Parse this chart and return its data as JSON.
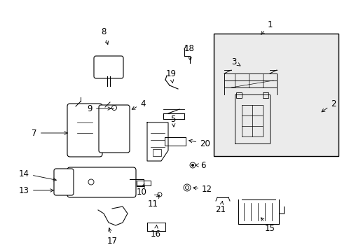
{
  "bg_color": "#ffffff",
  "line_color": "#000000",
  "box_fill": "#ebebeb",
  "label_fontsize": 8.5,
  "label_specs": [
    [
      "8",
      148,
      52,
      155,
      67,
      "center",
      "bottom"
    ],
    [
      "4",
      200,
      148,
      185,
      158,
      "left",
      "center"
    ],
    [
      "9",
      132,
      155,
      162,
      155,
      "right",
      "center"
    ],
    [
      "7",
      53,
      190,
      100,
      190,
      "right",
      "center"
    ],
    [
      "1",
      385,
      42,
      370,
      52,
      "center",
      "bottom"
    ],
    [
      "2",
      472,
      148,
      456,
      162,
      "left",
      "center"
    ],
    [
      "3",
      330,
      88,
      346,
      96,
      "left",
      "center"
    ],
    [
      "18",
      270,
      76,
      272,
      90,
      "center",
      "bottom"
    ],
    [
      "19",
      244,
      112,
      247,
      122,
      "center",
      "bottom"
    ],
    [
      "5",
      251,
      170,
      248,
      182,
      "right",
      "center"
    ],
    [
      "20",
      285,
      205,
      266,
      200,
      "left",
      "center"
    ],
    [
      "6",
      286,
      236,
      278,
      236,
      "left",
      "center"
    ],
    [
      "14",
      42,
      248,
      84,
      258,
      "right",
      "center"
    ],
    [
      "13",
      42,
      272,
      80,
      272,
      "right",
      "center"
    ],
    [
      "10",
      202,
      268,
      206,
      262,
      "center",
      "top"
    ],
    [
      "11",
      218,
      285,
      228,
      278,
      "center",
      "top"
    ],
    [
      "12",
      288,
      270,
      272,
      268,
      "left",
      "center"
    ],
    [
      "21",
      315,
      293,
      318,
      284,
      "center",
      "top"
    ],
    [
      "15",
      385,
      320,
      370,
      308,
      "center",
      "top"
    ],
    [
      "16",
      222,
      328,
      224,
      318,
      "center",
      "top"
    ],
    [
      "17",
      160,
      338,
      155,
      322,
      "center",
      "top"
    ]
  ]
}
